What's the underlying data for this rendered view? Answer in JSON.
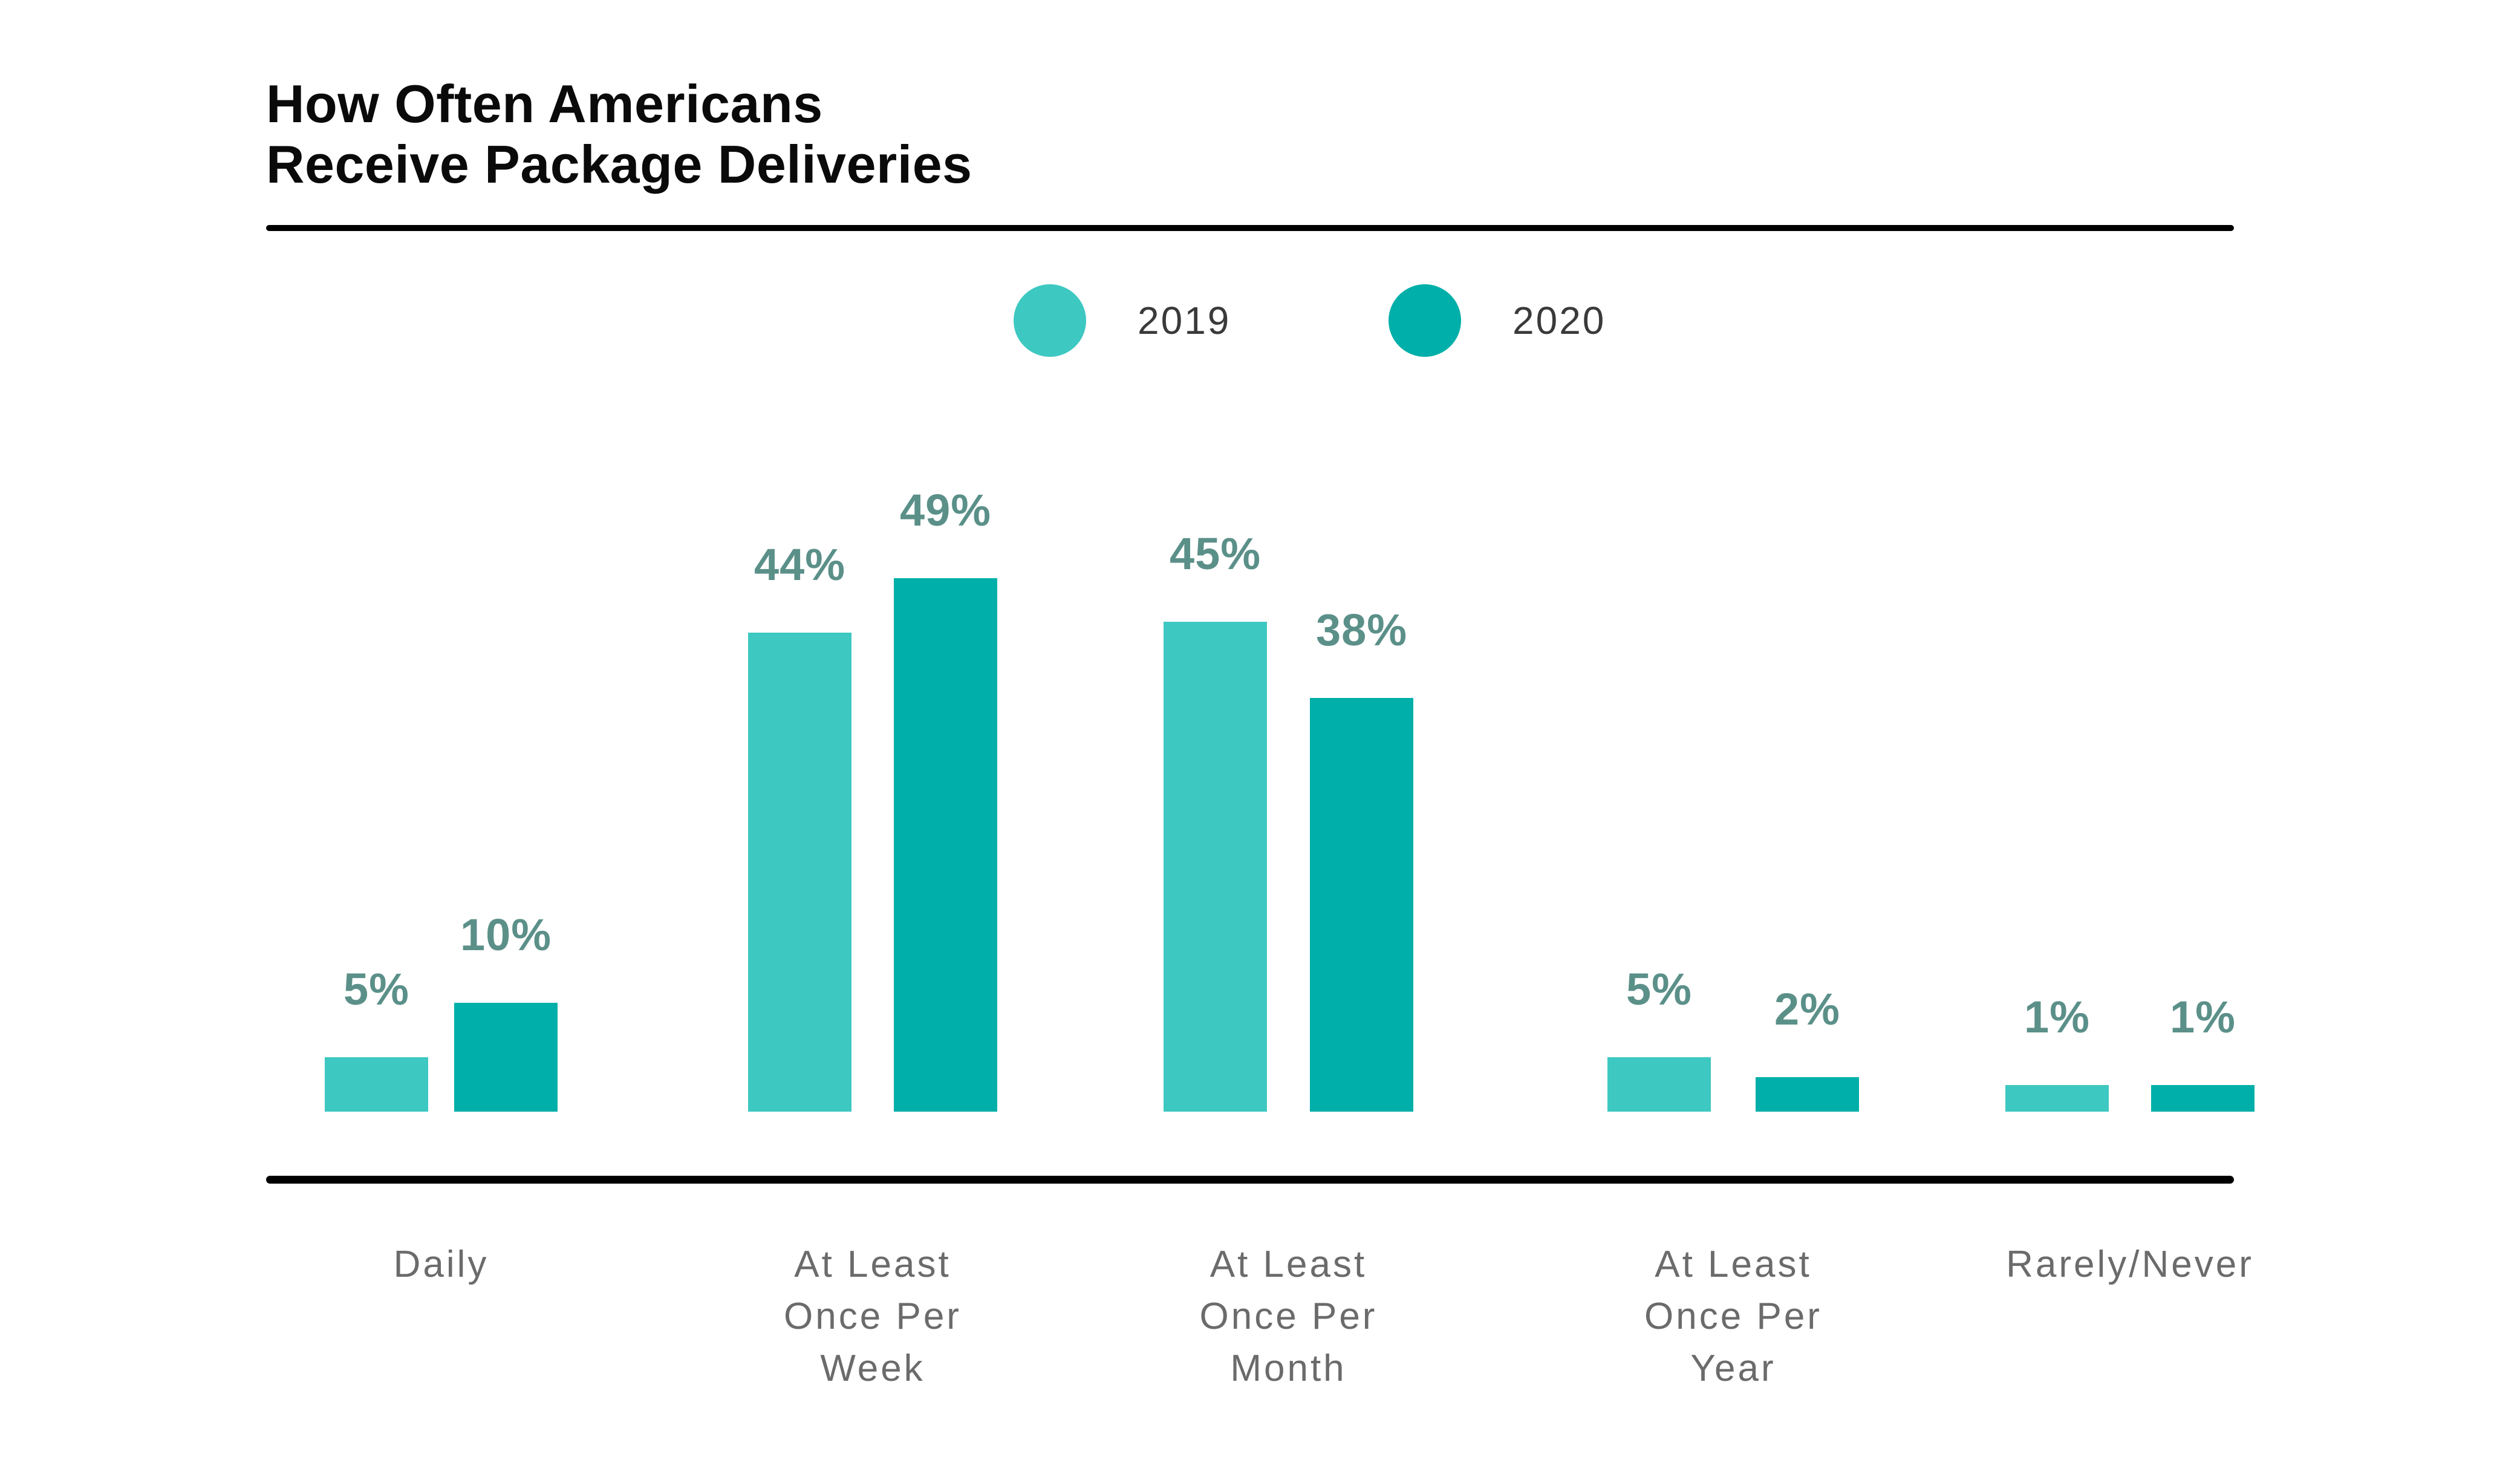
{
  "title": "How Often Americans\nReceive Package Deliveries",
  "colors": {
    "series_2019": "#3ec8c2",
    "series_2020": "#00afa9",
    "value_label": "#5b9089",
    "category_label": "#6b6b6b",
    "legend_text": "#3a3a3a",
    "axis_line": "#000000",
    "background": "#ffffff"
  },
  "legend": {
    "items": [
      {
        "label": "2019",
        "color": "#3ec8c2"
      },
      {
        "label": "2020",
        "color": "#00afa9"
      }
    ]
  },
  "chart_data": {
    "type": "bar",
    "title": "How Often Americans Receive Package Deliveries",
    "categories": [
      "Daily",
      "At Least Once Per Week",
      "At Least Once Per Month",
      "At Least Once Per Year",
      "Rarely/Never"
    ],
    "category_display": [
      "Daily",
      "At Least\nOnce Per\nWeek",
      "At Least\nOnce Per\nMonth",
      "At Least\nOnce Per\nYear",
      "Rarely/Never"
    ],
    "series": [
      {
        "name": "2019",
        "color": "#3ec8c2",
        "values": [
          5,
          44,
          45,
          5,
          1
        ]
      },
      {
        "name": "2020",
        "color": "#00afa9",
        "values": [
          10,
          49,
          38,
          2,
          1
        ]
      }
    ],
    "value_unit": "%",
    "data_labels": [
      "5%",
      "10%",
      "44%",
      "49%",
      "45%",
      "38%",
      "5%",
      "2%",
      "1%",
      "1%"
    ],
    "ylim": [
      0,
      50
    ],
    "grid": false,
    "y_axis_shown": false,
    "legend_position": "top-center"
  }
}
